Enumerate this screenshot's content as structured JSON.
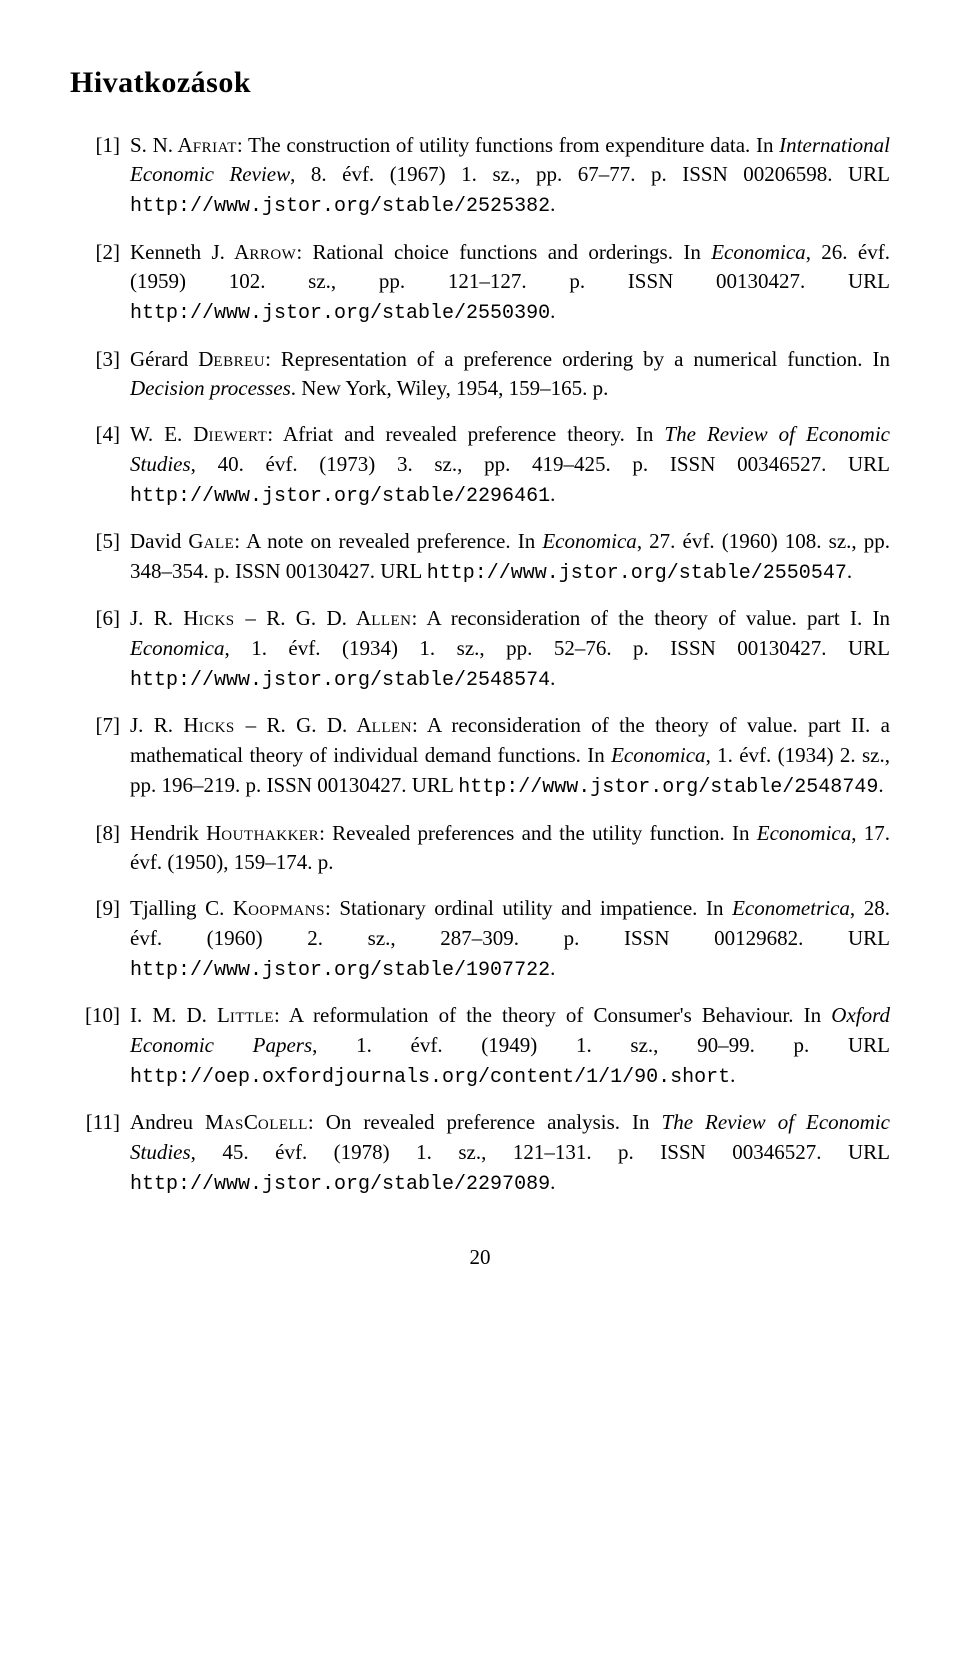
{
  "heading": "Hivatkozások",
  "page_number": "20",
  "refs": [
    {
      "num": "[1]",
      "segments": [
        {
          "t": "S. N. A",
          "c": ""
        },
        {
          "t": "friat",
          "c": "sc"
        },
        {
          "t": ": The construction of utility functions from expenditure data. In ",
          "c": ""
        },
        {
          "t": "International Economic Review",
          "c": "it"
        },
        {
          "t": ", 8. évf. (1967) 1. sz., pp. 67–77. p. ISSN 00206598. URL ",
          "c": ""
        },
        {
          "t": "http://www.jstor.org/stable/2525382",
          "c": "tt"
        },
        {
          "t": ".",
          "c": ""
        }
      ]
    },
    {
      "num": "[2]",
      "segments": [
        {
          "t": "Kenneth J. A",
          "c": ""
        },
        {
          "t": "rrow",
          "c": "sc"
        },
        {
          "t": ": Rational choice functions and orderings. In ",
          "c": ""
        },
        {
          "t": "Economica",
          "c": "it"
        },
        {
          "t": ", 26. évf. (1959) 102. sz., pp. 121–127. p. ISSN 00130427. URL ",
          "c": ""
        },
        {
          "t": "http://www.jstor.org/stable/2550390",
          "c": "tt"
        },
        {
          "t": ".",
          "c": ""
        }
      ]
    },
    {
      "num": "[3]",
      "segments": [
        {
          "t": "Gérard D",
          "c": ""
        },
        {
          "t": "ebreu",
          "c": "sc"
        },
        {
          "t": ": Representation of a preference ordering by a numerical function. In ",
          "c": ""
        },
        {
          "t": "Decision processes",
          "c": "it"
        },
        {
          "t": ". New York, Wiley, 1954, 159–165. p.",
          "c": ""
        }
      ]
    },
    {
      "num": "[4]",
      "segments": [
        {
          "t": "W. E. D",
          "c": ""
        },
        {
          "t": "iewert",
          "c": "sc"
        },
        {
          "t": ": Afriat and revealed preference theory. In ",
          "c": ""
        },
        {
          "t": "The Review of Economic Studies",
          "c": "it"
        },
        {
          "t": ", 40. évf. (1973) 3. sz., pp. 419–425. p. ISSN 00346527. URL ",
          "c": ""
        },
        {
          "t": "http://www.jstor.org/stable/2296461",
          "c": "tt"
        },
        {
          "t": ".",
          "c": ""
        }
      ]
    },
    {
      "num": "[5]",
      "segments": [
        {
          "t": "David G",
          "c": ""
        },
        {
          "t": "ale",
          "c": "sc"
        },
        {
          "t": ": A note on revealed preference. In ",
          "c": ""
        },
        {
          "t": "Economica",
          "c": "it"
        },
        {
          "t": ", 27. évf. (1960) 108. sz., pp. 348–354. p. ISSN 00130427. URL ",
          "c": ""
        },
        {
          "t": "http://www.jstor.org/stable/2550547",
          "c": "tt"
        },
        {
          "t": ".",
          "c": ""
        }
      ]
    },
    {
      "num": "[6]",
      "segments": [
        {
          "t": "J. R. H",
          "c": ""
        },
        {
          "t": "icks ",
          "c": "sc"
        },
        {
          "t": "– R. G. D. A",
          "c": ""
        },
        {
          "t": "llen",
          "c": "sc"
        },
        {
          "t": ": A reconsideration of the theory of value. part I. In ",
          "c": ""
        },
        {
          "t": "Economica",
          "c": "it"
        },
        {
          "t": ", 1. évf. (1934) 1. sz., pp. 52–76. p. ISSN 00130427. URL ",
          "c": ""
        },
        {
          "t": "http://www.jstor.org/stable/2548574",
          "c": "tt"
        },
        {
          "t": ".",
          "c": ""
        }
      ]
    },
    {
      "num": "[7]",
      "segments": [
        {
          "t": "J. R. H",
          "c": ""
        },
        {
          "t": "icks ",
          "c": "sc"
        },
        {
          "t": "– R. G. D. A",
          "c": ""
        },
        {
          "t": "llen",
          "c": "sc"
        },
        {
          "t": ": A reconsideration of the theory of value. part II. a mathematical theory of individual demand functions. In ",
          "c": ""
        },
        {
          "t": "Economica",
          "c": "it"
        },
        {
          "t": ", 1. évf. (1934) 2. sz., pp. 196–219. p. ISSN 00130427. URL ",
          "c": ""
        },
        {
          "t": "http://www.jstor.org/stable/2548749",
          "c": "tt"
        },
        {
          "t": ".",
          "c": ""
        }
      ]
    },
    {
      "num": "[8]",
      "segments": [
        {
          "t": "Hendrik H",
          "c": ""
        },
        {
          "t": "outhakker",
          "c": "sc"
        },
        {
          "t": ": Revealed preferences and the utility function. In ",
          "c": ""
        },
        {
          "t": "Economica",
          "c": "it"
        },
        {
          "t": ", 17. évf. (1950), 159–174. p.",
          "c": ""
        }
      ]
    },
    {
      "num": "[9]",
      "segments": [
        {
          "t": "Tjalling C. K",
          "c": ""
        },
        {
          "t": "oopmans",
          "c": "sc"
        },
        {
          "t": ": Stationary ordinal utility and impatience. In ",
          "c": ""
        },
        {
          "t": "Econometrica",
          "c": "it"
        },
        {
          "t": ", 28. évf. (1960) 2. sz., 287–309. p. ISSN 00129682. URL ",
          "c": ""
        },
        {
          "t": "http://www.jstor.org/stable/1907722",
          "c": "tt"
        },
        {
          "t": ".",
          "c": ""
        }
      ]
    },
    {
      "num": "[10]",
      "segments": [
        {
          "t": "I. M. D. L",
          "c": ""
        },
        {
          "t": "ittle",
          "c": "sc"
        },
        {
          "t": ": A reformulation of the theory of Consumer's Behaviour. In ",
          "c": ""
        },
        {
          "t": "Oxford Economic Papers",
          "c": "it"
        },
        {
          "t": ", 1. évf. (1949) 1. sz., 90–99. p. URL ",
          "c": ""
        },
        {
          "t": "http://oep.oxfordjournals.org/content/1/1/90.short",
          "c": "tt"
        },
        {
          "t": ".",
          "c": ""
        }
      ]
    },
    {
      "num": "[11]",
      "segments": [
        {
          "t": "Andreu M",
          "c": ""
        },
        {
          "t": "as",
          "c": "sc"
        },
        {
          "t": "C",
          "c": ""
        },
        {
          "t": "olell",
          "c": "sc"
        },
        {
          "t": ": On revealed preference analysis. In ",
          "c": ""
        },
        {
          "t": "The Review of Economic Studies",
          "c": "it"
        },
        {
          "t": ", 45. évf. (1978) 1. sz., 121–131. p. ISSN 00346527. URL ",
          "c": ""
        },
        {
          "t": "http://www.jstor.org/stable/2297089",
          "c": "tt"
        },
        {
          "t": ".",
          "c": ""
        }
      ]
    }
  ]
}
